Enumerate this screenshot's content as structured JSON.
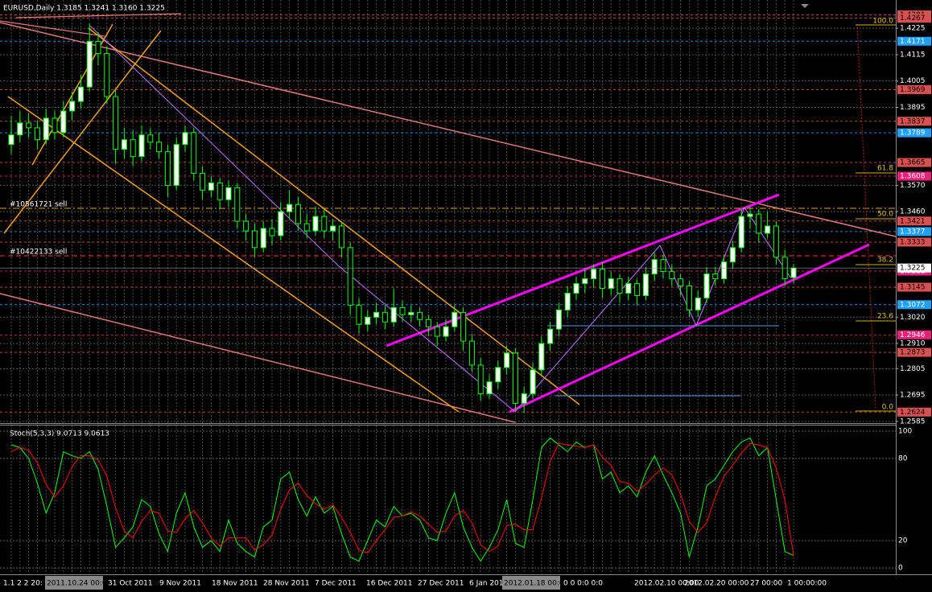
{
  "chart_data": [
    {
      "type": "candlestick",
      "title": "EURUSD,Daily  1.3185 1.3241 1.3160 1.3225",
      "open": [
        1.374,
        1.378,
        1.383,
        1.381,
        1.376,
        1.385,
        1.379,
        1.388,
        1.392,
        1.398,
        1.417,
        1.412,
        1.394,
        1.372,
        1.376,
        1.369,
        1.378,
        1.375,
        1.371,
        1.357,
        1.374,
        1.379,
        1.362,
        1.355,
        1.358,
        1.351,
        1.356,
        1.342,
        1.338,
        1.331,
        1.339,
        1.336,
        1.346,
        1.349,
        1.341,
        1.338,
        1.344,
        1.338,
        1.34,
        1.331,
        1.307,
        1.299,
        1.302,
        1.304,
        1.3,
        1.306,
        1.303,
        1.304,
        1.301,
        1.298,
        1.294,
        1.298,
        1.304,
        1.292,
        1.282,
        1.27,
        1.275,
        1.281,
        1.287,
        1.266,
        1.27,
        1.28,
        1.291,
        1.297,
        1.305,
        1.312,
        1.316,
        1.318,
        1.322,
        1.314,
        1.318,
        1.312,
        1.316,
        1.311,
        1.32,
        1.326,
        1.321,
        1.318,
        1.315,
        1.305,
        1.31,
        1.32,
        1.318,
        1.325,
        1.331,
        1.344,
        1.345,
        1.337,
        1.34,
        1.327,
        1.3185
      ],
      "high": [
        1.386,
        1.388,
        1.387,
        1.384,
        1.389,
        1.388,
        1.392,
        1.396,
        1.403,
        1.4245,
        1.421,
        1.415,
        1.397,
        1.381,
        1.38,
        1.382,
        1.381,
        1.379,
        1.374,
        1.377,
        1.382,
        1.381,
        1.365,
        1.361,
        1.36,
        1.359,
        1.358,
        1.345,
        1.341,
        1.342,
        1.343,
        1.35,
        1.355,
        1.352,
        1.345,
        1.348,
        1.347,
        1.343,
        1.342,
        1.333,
        1.31,
        1.305,
        1.308,
        1.307,
        1.314,
        1.309,
        1.307,
        1.306,
        1.303,
        1.3,
        1.301,
        1.307,
        1.306,
        1.295,
        1.285,
        1.278,
        1.284,
        1.29,
        1.289,
        1.273,
        1.283,
        1.294,
        1.3,
        1.308,
        1.315,
        1.319,
        1.322,
        1.324,
        1.325,
        1.321,
        1.32,
        1.319,
        1.318,
        1.323,
        1.329,
        1.328,
        1.324,
        1.32,
        1.317,
        1.313,
        1.323,
        1.323,
        1.328,
        1.334,
        1.347,
        1.348,
        1.347,
        1.346,
        1.342,
        1.33,
        1.3241
      ],
      "low": [
        1.37,
        1.375,
        1.377,
        1.372,
        1.374,
        1.376,
        1.377,
        1.384,
        1.389,
        1.396,
        1.407,
        1.391,
        1.366,
        1.368,
        1.365,
        1.367,
        1.372,
        1.368,
        1.352,
        1.355,
        1.371,
        1.359,
        1.351,
        1.352,
        1.347,
        1.348,
        1.339,
        1.334,
        1.327,
        1.329,
        1.332,
        1.334,
        1.343,
        1.338,
        1.335,
        1.336,
        1.335,
        1.334,
        1.327,
        1.303,
        1.295,
        1.296,
        1.299,
        1.297,
        1.298,
        1.3,
        1.3,
        1.298,
        1.294,
        1.29,
        1.292,
        1.296,
        1.288,
        1.279,
        1.267,
        1.268,
        1.272,
        1.278,
        1.263,
        1.262,
        1.268,
        1.278,
        1.288,
        1.294,
        1.302,
        1.309,
        1.312,
        1.314,
        1.31,
        1.311,
        1.308,
        1.309,
        1.307,
        1.309,
        1.317,
        1.318,
        1.315,
        1.311,
        1.302,
        1.302,
        1.308,
        1.315,
        1.316,
        1.322,
        1.329,
        1.339,
        1.333,
        1.335,
        1.324,
        1.315,
        1.316
      ],
      "close": [
        1.378,
        1.383,
        1.381,
        1.376,
        1.385,
        1.379,
        1.388,
        1.392,
        1.398,
        1.417,
        1.412,
        1.394,
        1.372,
        1.376,
        1.369,
        1.378,
        1.375,
        1.371,
        1.357,
        1.374,
        1.379,
        1.362,
        1.355,
        1.358,
        1.351,
        1.356,
        1.342,
        1.338,
        1.331,
        1.339,
        1.336,
        1.346,
        1.349,
        1.341,
        1.338,
        1.344,
        1.338,
        1.34,
        1.331,
        1.307,
        1.299,
        1.302,
        1.304,
        1.3,
        1.306,
        1.303,
        1.304,
        1.301,
        1.298,
        1.294,
        1.298,
        1.304,
        1.292,
        1.282,
        1.27,
        1.275,
        1.281,
        1.287,
        1.266,
        1.27,
        1.28,
        1.291,
        1.297,
        1.305,
        1.312,
        1.316,
        1.318,
        1.322,
        1.314,
        1.318,
        1.312,
        1.316,
        1.311,
        1.32,
        1.326,
        1.321,
        1.318,
        1.315,
        1.305,
        1.31,
        1.32,
        1.318,
        1.325,
        1.331,
        1.344,
        1.345,
        1.337,
        1.34,
        1.327,
        1.318,
        1.3225
      ],
      "up_color": "#ffffff",
      "down_color": "#000000",
      "candle_color": "#00ff00",
      "ylim": [
        1.2578,
        1.4343
      ],
      "yticks": [
        1.4225,
        1.4115,
        1.4005,
        1.3895,
        {
          "value": 1.357,
          "label": "1.3570"
        },
        {
          "value": 1.346,
          "label": "1.3460"
        },
        {
          "value": 1.302,
          "label": "1.3020"
        },
        {
          "value": 1.291,
          "label": "1.2910"
        },
        1.2805,
        1.2695,
        1.2585
      ],
      "levels": [
        {
          "value": 1.4281,
          "color": "#d85050"
        },
        {
          "value": 1.4267,
          "color": "#d85050"
        },
        {
          "value": 1.4171,
          "color": "#1ea0ff"
        },
        {
          "value": 1.3969,
          "color": "#d85050"
        },
        {
          "value": 1.3837,
          "color": "#d85050"
        },
        {
          "value": 1.3789,
          "color": "#1ea0ff"
        },
        {
          "value": 1.3665,
          "color": "#d85050"
        },
        {
          "value": 1.3608,
          "color": "#e8207a"
        },
        {
          "value": 1.3421,
          "color": "#d85050"
        },
        {
          "value": 1.3377,
          "color": "#1ea0ff"
        },
        {
          "value": 1.3333,
          "color": "#d85050"
        },
        {
          "value": 1.3212,
          "color": "#e8207a"
        },
        {
          "value": 1.3145,
          "color": "#d85050"
        },
        {
          "value": 1.3072,
          "color": "#1ea0ff"
        },
        {
          "value": 1.2946,
          "color": "#e8207a"
        },
        {
          "value": 1.2873,
          "color": "#d85050"
        },
        {
          "value": 1.2624,
          "color": "#d85050"
        }
      ],
      "fibo_labels": [
        "100.0",
        "61.8",
        "50.0",
        "38.2",
        "23.6",
        "0.0"
      ],
      "orders": [
        "#10561721 sell",
        "#10422133 sell"
      ],
      "time_labels": [
        "1.1 2 2 20:",
        "2011.10.24 00:00",
        "31 Oct 2011",
        "9 Nov 2011",
        "18 Nov 2011",
        "28 Nov 2011",
        "7 Dec 2011",
        "16 Dec 2011",
        "27 Dec 2011",
        "6 Jan 201",
        "2012.01.18 00:00",
        "0 0 0:0 0:0",
        "2012.02.10 00:00",
        "2012.02.20 00:00",
        "27 00:00",
        "1 00:00:00"
      ]
    },
    {
      "type": "line",
      "title": "Stoch(5,3,3) 9.0713 9.0613",
      "series": [
        {
          "color": "#00ff00",
          "values": [
            90,
            88,
            80,
            62,
            40,
            55,
            85,
            82,
            80,
            85,
            72,
            45,
            15,
            22,
            30,
            50,
            45,
            25,
            12,
            40,
            55,
            30,
            15,
            20,
            12,
            35,
            18,
            12,
            8,
            30,
            35,
            65,
            70,
            50,
            38,
            52,
            40,
            45,
            25,
            8,
            5,
            20,
            35,
            30,
            45,
            38,
            40,
            35,
            22,
            20,
            40,
            55,
            30,
            15,
            5,
            15,
            28,
            50,
            18,
            15,
            50,
            88,
            95,
            90,
            85,
            92,
            88,
            90,
            65,
            70,
            55,
            60,
            52,
            70,
            82,
            68,
            55,
            40,
            8,
            30,
            60,
            65,
            75,
            85,
            92,
            95,
            82,
            88,
            50,
            12,
            9.0713
          ]
        },
        {
          "color": "#ff0000",
          "values": [
            85,
            88,
            86,
            77,
            61,
            52,
            60,
            74,
            82,
            82,
            79,
            67,
            44,
            27,
            22,
            34,
            42,
            40,
            27,
            26,
            36,
            42,
            33,
            22,
            16,
            22,
            22,
            22,
            13,
            17,
            24,
            43,
            57,
            62,
            53,
            47,
            43,
            46,
            37,
            26,
            13,
            11,
            20,
            28,
            37,
            38,
            41,
            38,
            32,
            26,
            27,
            38,
            42,
            33,
            17,
            12,
            16,
            31,
            32,
            28,
            28,
            51,
            78,
            91,
            90,
            89,
            88,
            90,
            81,
            75,
            63,
            62,
            56,
            61,
            68,
            73,
            68,
            54,
            34,
            26,
            33,
            52,
            67,
            75,
            84,
            91,
            90,
            88,
            73,
            50,
            9.0613
          ]
        }
      ],
      "ylim": [
        -4.65,
        104.1
      ],
      "yticks": [
        100,
        80,
        20,
        0
      ]
    }
  ]
}
